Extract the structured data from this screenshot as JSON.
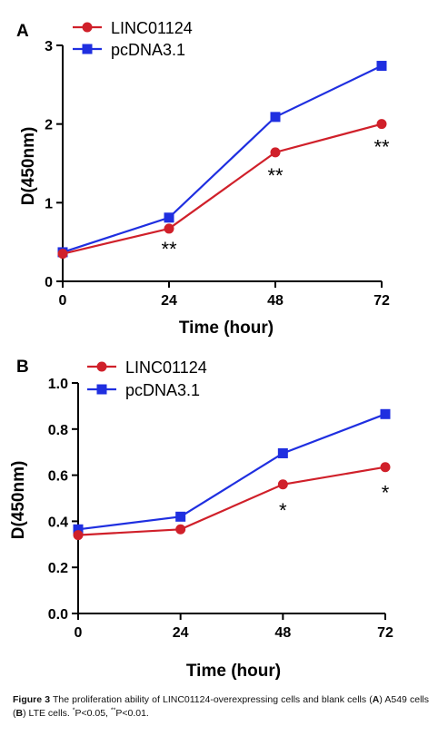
{
  "chart_data": [
    {
      "type": "line",
      "panel": "A",
      "xlabel": "Time (hour)",
      "ylabel": "D(450nm)",
      "x": [
        0,
        24,
        48,
        72
      ],
      "xlim": [
        0,
        72
      ],
      "ylim": [
        0,
        3
      ],
      "xticks": [
        "0",
        "24",
        "48",
        "72"
      ],
      "yticks": [
        "0",
        "1",
        "2",
        "3"
      ],
      "legend_position": "top-left",
      "grid": false,
      "series": [
        {
          "name": "LINC01124",
          "values": [
            0.35,
            0.67,
            1.64,
            2.0
          ],
          "color": "#d0202a",
          "marker": "circle"
        },
        {
          "name": "pcDNA3.1",
          "values": [
            0.37,
            0.81,
            2.09,
            2.74
          ],
          "color": "#1f2fe0",
          "marker": "square"
        }
      ],
      "annotations": [
        "**",
        "**",
        "**"
      ]
    },
    {
      "type": "line",
      "panel": "B",
      "xlabel": "Time (hour)",
      "ylabel": "D(450nm)",
      "x": [
        0,
        24,
        48,
        72
      ],
      "xlim": [
        0,
        72
      ],
      "ylim": [
        0,
        1.0
      ],
      "xticks": [
        "0",
        "24",
        "48",
        "72"
      ],
      "yticks": [
        "0.0",
        "0.2",
        "0.4",
        "0.6",
        "0.8",
        "1.0"
      ],
      "legend_position": "top-left",
      "grid": false,
      "series": [
        {
          "name": "LINC01124",
          "values": [
            0.34,
            0.365,
            0.56,
            0.635
          ],
          "color": "#d0202a",
          "marker": "circle"
        },
        {
          "name": "pcDNA3.1",
          "values": [
            0.365,
            0.42,
            0.695,
            0.865
          ],
          "color": "#1f2fe0",
          "marker": "square"
        }
      ],
      "annotations": [
        "*",
        "*"
      ]
    }
  ],
  "caption": {
    "label": "Figure 3",
    "text1": " The proliferation ability of LINC01124-overexpressing cells and blank cells (",
    "a": "A",
    "text2": ") A549 cells (",
    "b": "B",
    "text3": ") LTE cells. ",
    "sig1_sup": "*",
    "sig1": "P<0.05, ",
    "sig2_sup": "**",
    "sig2": "P<0.01."
  }
}
